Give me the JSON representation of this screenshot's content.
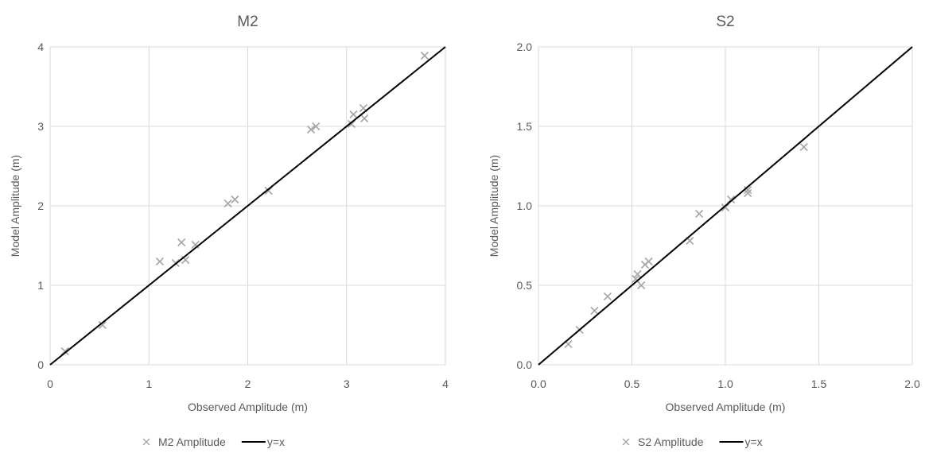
{
  "chart_data": [
    {
      "type": "scatter",
      "title": "M2",
      "xlabel": "Observed Amplitude (m)",
      "ylabel": "Model Amplitude (m)",
      "xlim": [
        0,
        4
      ],
      "ylim": [
        0,
        4
      ],
      "xticks": [
        "0",
        "1",
        "2",
        "3",
        "4"
      ],
      "yticks": [
        "0",
        "1",
        "2",
        "3",
        "4"
      ],
      "grid": true,
      "legend_position": "bottom",
      "series": [
        {
          "name": "M2 Amplitude",
          "marker": "x",
          "color": "#a6a6a6",
          "points": [
            [
              0.15,
              0.17
            ],
            [
              0.53,
              0.5
            ],
            [
              1.11,
              1.3
            ],
            [
              1.27,
              1.28
            ],
            [
              1.33,
              1.54
            ],
            [
              1.37,
              1.32
            ],
            [
              1.47,
              1.51
            ],
            [
              1.8,
              2.03
            ],
            [
              1.87,
              2.08
            ],
            [
              2.21,
              2.19
            ],
            [
              2.64,
              2.96
            ],
            [
              2.69,
              3.0
            ],
            [
              3.05,
              3.03
            ],
            [
              3.07,
              3.15
            ],
            [
              3.17,
              3.23
            ],
            [
              3.18,
              3.1
            ],
            [
              3.79,
              3.89
            ]
          ]
        },
        {
          "name": "y=x",
          "line": true,
          "color": "#000000",
          "points": [
            [
              0,
              0
            ],
            [
              4,
              4
            ]
          ]
        }
      ]
    },
    {
      "type": "scatter",
      "title": "S2",
      "xlabel": "Observed Amplitude (m)",
      "ylabel": "Model Amplitude (m)",
      "xlim": [
        0,
        2
      ],
      "ylim": [
        0,
        2
      ],
      "xticks": [
        "0.0",
        "0.5",
        "1.0",
        "1.5",
        "2.0"
      ],
      "yticks": [
        "0.0",
        "0.5",
        "1.0",
        "1.5",
        "2.0"
      ],
      "grid": true,
      "legend_position": "bottom",
      "series": [
        {
          "name": "S2 Amplitude",
          "marker": "x",
          "color": "#a6a6a6",
          "points": [
            [
              0.16,
              0.13
            ],
            [
              0.22,
              0.22
            ],
            [
              0.3,
              0.34
            ],
            [
              0.37,
              0.43
            ],
            [
              0.52,
              0.54
            ],
            [
              0.53,
              0.57
            ],
            [
              0.55,
              0.5
            ],
            [
              0.57,
              0.63
            ],
            [
              0.59,
              0.65
            ],
            [
              0.81,
              0.78
            ],
            [
              0.86,
              0.95
            ],
            [
              1.0,
              0.99
            ],
            [
              1.03,
              1.04
            ],
            [
              1.12,
              1.1
            ],
            [
              1.12,
              1.08
            ],
            [
              1.42,
              1.37
            ]
          ]
        },
        {
          "name": "y=x",
          "line": true,
          "color": "#000000",
          "points": [
            [
              0,
              0
            ],
            [
              2,
              2
            ]
          ]
        }
      ]
    }
  ]
}
